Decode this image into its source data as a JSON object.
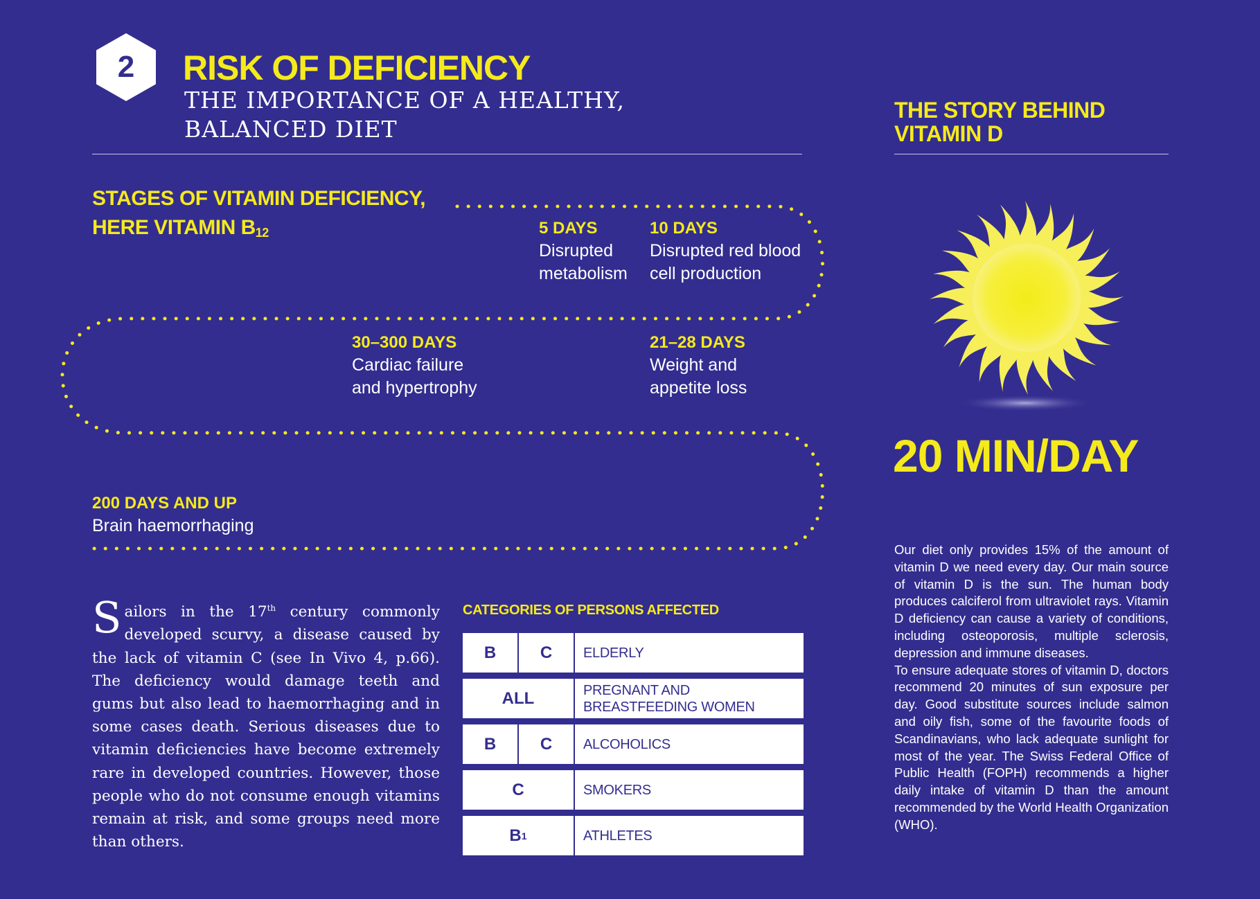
{
  "header": {
    "section_number": "2",
    "title": "RISK OF DEFICIENCY",
    "subtitle_line1": "THE IMPORTANCE OF A HEALTHY,",
    "subtitle_line2": "BALANCED DIET"
  },
  "stages": {
    "title_line1": "STAGES OF VITAMIN DEFICIENCY,",
    "title_line2_prefix": "HERE VITAMIN B",
    "title_line2_sub": "12",
    "items": [
      {
        "label": "5 DAYS",
        "line1": "Disrupted",
        "line2": "metabolism"
      },
      {
        "label": "10 DAYS",
        "line1": "Disrupted red blood",
        "line2": "cell production"
      },
      {
        "label": "21–28 DAYS",
        "line1": "Weight and",
        "line2": "appetite loss"
      },
      {
        "label": "30–300 DAYS",
        "line1": "Cardiac failure",
        "line2": "and hypertrophy"
      },
      {
        "label": "200 DAYS AND UP",
        "line1": "Brain haemorrhaging",
        "line2": ""
      }
    ]
  },
  "essay": {
    "dropcap": "S",
    "text_a": "ailors in the 17",
    "sup": "th",
    "text_b": " century commonly developed scurvy, a disease caused by the lack of vitamin C (see In Vivo 4, p.66). The deficiency would damage teeth and gums but also lead to haemorrhaging and in some cases death. Serious diseases due to vitamin deficiencies have become extremely rare in developed countries. However, those people who do not consume enough vitamins remain at risk, and some groups need more than others."
  },
  "categories": {
    "title": "CATEGORIES OF PERSONS AFFECTED",
    "rows": [
      {
        "vitamins": [
          "B",
          "C"
        ],
        "label": "ELDERLY"
      },
      {
        "vitamins": [
          "ALL"
        ],
        "label": "PREGNANT AND\nBREASTFEEDING WOMEN"
      },
      {
        "vitamins": [
          "B",
          "C"
        ],
        "label": "ALCOHOLICS"
      },
      {
        "vitamins": [
          "C"
        ],
        "label": "SMOKERS"
      },
      {
        "vitamins": [
          "B"
        ],
        "vitamin_sub": "1",
        "label": "ATHLETES"
      }
    ]
  },
  "sidebar": {
    "title_line1": "THE STORY BEHIND",
    "title_line2": "VITAMIN D",
    "sun_icon": "sun-icon",
    "big_figure": "20 MIN/DAY",
    "paragraph1": "Our diet only provides 15% of the amount of vitamin D we need every day. Our main source of vitamin D is the sun. The human body produces calciferol from ultraviolet rays. Vitamin D deficiency can cause a variety of conditions, including osteoporosis, multiple sclerosis, depression and immune diseases.",
    "paragraph2": "To ensure adequate stores of vitamin D, doctors recommend 20 minutes of sun exposure per day. Good substitute sources include salmon and oily fish, some of the favourite foods of Scandinavians, who lack adequate sunlight for most of the year. The Swiss Federal Office of Public Health (FOPH) recommends a higher daily intake of vitamin D than the amount recommended by the World Health Organization (WHO)."
  },
  "colors": {
    "background": "#332d8f",
    "accent": "#f5ea1c",
    "text": "#ffffff"
  }
}
